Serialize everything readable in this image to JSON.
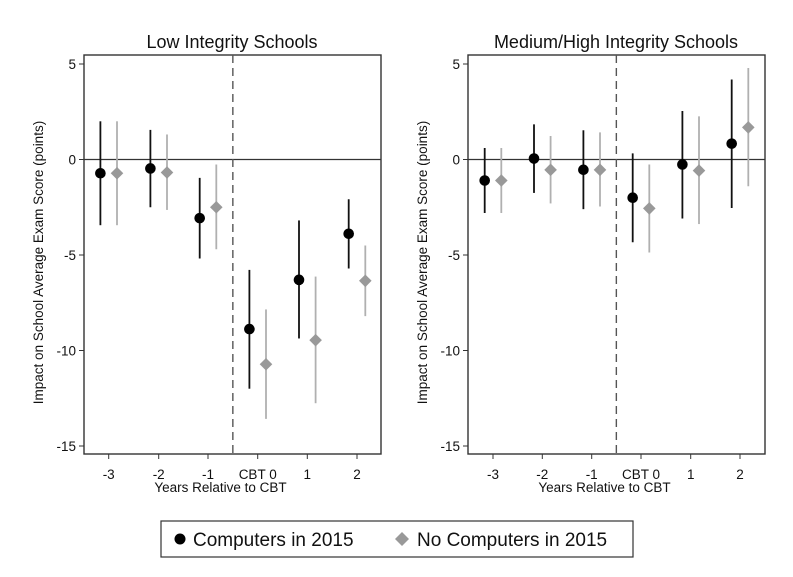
{
  "chart_data": [
    {
      "type": "scatter",
      "subtype": "point-estimate-with-confidence-intervals",
      "title": "Low Integrity Schools",
      "xlabel": "Years Relative to CBT",
      "ylabel": "Impact on School Average Exam Score (points)",
      "categories": [
        "-3",
        "-2",
        "-1",
        "CBT 0",
        "1",
        "2"
      ],
      "ylim": [
        -15,
        5
      ],
      "yticks": [
        5,
        0,
        -5,
        -10,
        -15
      ],
      "reference_lines": {
        "horizontal_at_y": 0,
        "vertical_dashed_between": [
          "-1",
          "CBT 0"
        ]
      },
      "grid": false,
      "series": [
        {
          "name": "Computers in 2015",
          "marker": "circle",
          "color": "#000000",
          "values": [
            -0.72,
            -0.47,
            -3.07,
            -8.88,
            -6.3,
            -3.89
          ],
          "ci_low": [
            -3.44,
            -2.5,
            -5.18,
            -12.0,
            -9.37,
            -5.71
          ],
          "ci_high": [
            2.0,
            1.55,
            -0.96,
            -5.78,
            -3.19,
            -2.08
          ]
        },
        {
          "name": "No Computers in 2015",
          "marker": "diamond",
          "color": "#999999",
          "values": [
            -0.72,
            -0.68,
            -2.5,
            -10.72,
            -9.46,
            -6.35
          ],
          "ci_low": [
            -3.44,
            -2.64,
            -4.7,
            -13.58,
            -12.76,
            -8.2
          ],
          "ci_high": [
            2.0,
            1.31,
            -0.26,
            -7.85,
            -6.13,
            -4.5
          ]
        }
      ]
    },
    {
      "type": "scatter",
      "subtype": "point-estimate-with-confidence-intervals",
      "title": "Medium/High Integrity Schools",
      "xlabel": "Years Relative to CBT",
      "ylabel": "Impact on School Average Exam Score (points)",
      "categories": [
        "-3",
        "-2",
        "-1",
        "CBT 0",
        "1",
        "2"
      ],
      "ylim": [
        -15,
        5
      ],
      "yticks": [
        5,
        0,
        -5,
        -10,
        -15
      ],
      "reference_lines": {
        "horizontal_at_y": 0,
        "vertical_dashed_between": [
          "-1",
          "CBT 0"
        ]
      },
      "grid": false,
      "series": [
        {
          "name": "Computers in 2015",
          "marker": "circle",
          "color": "#000000",
          "values": [
            -1.1,
            0.05,
            -0.54,
            -2.0,
            -0.26,
            0.83
          ],
          "ci_low": [
            -2.8,
            -1.75,
            -2.6,
            -4.33,
            -3.09,
            -2.54
          ],
          "ci_high": [
            0.6,
            1.84,
            1.53,
            0.32,
            2.54,
            4.19
          ]
        },
        {
          "name": "No Computers in 2015",
          "marker": "diamond",
          "color": "#999999",
          "values": [
            -1.1,
            -0.54,
            -0.54,
            -2.56,
            -0.58,
            1.68
          ],
          "ci_low": [
            -2.8,
            -2.3,
            -2.46,
            -4.87,
            -3.38,
            -1.4
          ],
          "ci_high": [
            0.6,
            1.23,
            1.42,
            -0.26,
            2.26,
            4.79
          ]
        }
      ]
    }
  ],
  "legend": {
    "placement": "bottom-center",
    "items": [
      {
        "label": "Computers in 2015",
        "marker": "circle",
        "color": "#000000"
      },
      {
        "label": "No Computers in 2015",
        "marker": "diamond",
        "color": "#999999"
      }
    ]
  }
}
